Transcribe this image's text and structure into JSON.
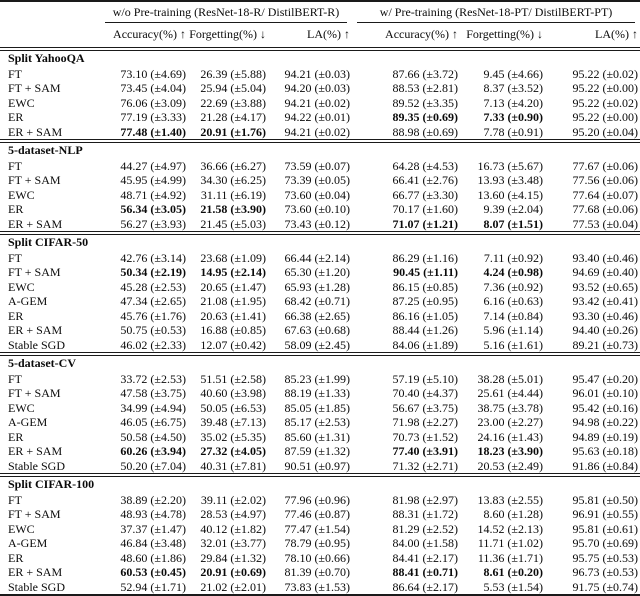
{
  "table": {
    "groups": [
      {
        "label": "w/o Pre-training (ResNet-18-R/ DistilBERT-R)"
      },
      {
        "label": "w/ Pre-training (ResNet-18-PT/ DistilBERT-PT)"
      }
    ],
    "columns": [
      "Accuracy(%) ↑",
      "Forgetting(%) ↓",
      "LA(%) ↑",
      "Accuracy(%) ↑",
      "Forgetting(%) ↓",
      "LA(%) ↑"
    ],
    "sections": [
      {
        "title": "Split YahooQA",
        "rows": [
          {
            "method": "FT",
            "values": [
              "73.10 (±4.69)",
              "26.39 (±5.88)",
              "94.21 (±0.03)",
              "87.66 (±3.72)",
              "9.45 (±4.66)",
              "95.22 (±0.02)"
            ],
            "bold": [
              0,
              0,
              0,
              0,
              0,
              0
            ]
          },
          {
            "method": "FT + SAM",
            "values": [
              "73.45 (±4.04)",
              "25.94 (±5.04)",
              "94.20 (±0.03)",
              "88.53 (±2.81)",
              "8.37 (±3.52)",
              "95.22 (±0.00)"
            ],
            "bold": [
              0,
              0,
              0,
              0,
              0,
              0
            ]
          },
          {
            "method": "EWC",
            "values": [
              "76.06 (±3.09)",
              "22.69 (±3.88)",
              "94.21 (±0.02)",
              "89.52 (±3.35)",
              "7.13 (±4.20)",
              "95.22 (±0.02)"
            ],
            "bold": [
              0,
              0,
              0,
              0,
              0,
              0
            ]
          },
          {
            "method": "ER",
            "values": [
              "77.19 (±3.33)",
              "21.28 (±4.17)",
              "94.22 (±0.01)",
              "89.35 (±0.69)",
              "7.33 (±0.90)",
              "95.22 (±0.00)"
            ],
            "bold": [
              0,
              0,
              0,
              1,
              1,
              0
            ]
          },
          {
            "method": "ER + SAM",
            "values": [
              "77.48 (±1.40)",
              "20.91 (±1.76)",
              "94.21 (±0.02)",
              "88.98 (±0.69)",
              "7.78 (±0.91)",
              "95.20 (±0.04)"
            ],
            "bold": [
              1,
              1,
              0,
              0,
              0,
              0
            ]
          }
        ]
      },
      {
        "title": "5-dataset-NLP",
        "rows": [
          {
            "method": "FT",
            "values": [
              "44.27 (±4.97)",
              "36.66 (±6.27)",
              "73.59 (±0.07)",
              "64.28 (±4.53)",
              "16.73 (±5.67)",
              "77.67 (±0.06)"
            ],
            "bold": [
              0,
              0,
              0,
              0,
              0,
              0
            ]
          },
          {
            "method": "FT + SAM",
            "values": [
              "45.95 (±4.99)",
              "34.30 (±6.25)",
              "73.39 (±0.05)",
              "66.41 (±2.76)",
              "13.93 (±3.48)",
              "77.56 (±0.06)"
            ],
            "bold": [
              0,
              0,
              0,
              0,
              0,
              0
            ]
          },
          {
            "method": "EWC",
            "values": [
              "48.71 (±4.92)",
              "31.11 (±6.19)",
              "73.60 (±0.04)",
              "66.77 (±3.30)",
              "13.60 (±4.15)",
              "77.64 (±0.07)"
            ],
            "bold": [
              0,
              0,
              0,
              0,
              0,
              0
            ]
          },
          {
            "method": "ER",
            "values": [
              "56.34 (±3.05)",
              "21.58 (±3.90)",
              "73.60 (±0.10)",
              "70.17 (±1.60)",
              "9.39 (±2.04)",
              "77.68 (±0.06)"
            ],
            "bold": [
              1,
              1,
              0,
              0,
              0,
              0
            ]
          },
          {
            "method": "ER + SAM",
            "values": [
              "56.27 (±3.93)",
              "21.45 (±5.03)",
              "73.43 (±0.12)",
              "71.07 (±1.21)",
              "8.07 (±1.51)",
              "77.53 (±0.04)"
            ],
            "bold": [
              0,
              0,
              0,
              1,
              1,
              0
            ]
          }
        ]
      },
      {
        "title": "Split CIFAR-50",
        "rows": [
          {
            "method": "FT",
            "values": [
              "42.76 (±3.14)",
              "23.68 (±1.09)",
              "66.44 (±2.14)",
              "86.29 (±1.16)",
              "7.11 (±0.92)",
              "93.40 (±0.46)"
            ],
            "bold": [
              0,
              0,
              0,
              0,
              0,
              0
            ]
          },
          {
            "method": "FT + SAM",
            "values": [
              "50.34 (±2.19)",
              "14.95 (±2.14)",
              "65.30 (±1.20)",
              "90.45 (±1.11)",
              "4.24 (±0.98)",
              "94.69 (±0.40)"
            ],
            "bold": [
              1,
              1,
              0,
              1,
              1,
              0
            ]
          },
          {
            "method": "EWC",
            "values": [
              "45.28 (±2.53)",
              "20.65 (±1.47)",
              "65.93 (±1.28)",
              "86.15 (±0.85)",
              "7.36 (±0.92)",
              "93.52 (±0.65)"
            ],
            "bold": [
              0,
              0,
              0,
              0,
              0,
              0
            ]
          },
          {
            "method": "A-GEM",
            "values": [
              "47.34 (±2.65)",
              "21.08 (±1.95)",
              "68.42 (±0.71)",
              "87.25 (±0.95)",
              "6.16 (±0.63)",
              "93.42 (±0.41)"
            ],
            "bold": [
              0,
              0,
              0,
              0,
              0,
              0
            ]
          },
          {
            "method": "ER",
            "values": [
              "45.76 (±1.76)",
              "20.63 (±1.41)",
              "66.38 (±2.65)",
              "86.16 (±1.05)",
              "7.14 (±0.84)",
              "93.30 (±0.46)"
            ],
            "bold": [
              0,
              0,
              0,
              0,
              0,
              0
            ]
          },
          {
            "method": "ER + SAM",
            "values": [
              "50.75 (±0.53)",
              "16.88 (±0.85)",
              "67.63 (±0.68)",
              "88.44 (±1.26)",
              "5.96 (±1.14)",
              "94.40 (±0.26)"
            ],
            "bold": [
              0,
              0,
              0,
              0,
              0,
              0
            ]
          },
          {
            "method": "Stable SGD",
            "values": [
              "46.02 (±2.33)",
              "12.07 (±0.42)",
              "58.09 (±2.45)",
              "84.06 (±1.89)",
              "5.16 (±1.61)",
              "89.21 (±0.73)"
            ],
            "bold": [
              0,
              0,
              0,
              0,
              0,
              0
            ]
          }
        ]
      },
      {
        "title": "5-dataset-CV",
        "rows": [
          {
            "method": "FT",
            "values": [
              "33.72 (±2.53)",
              "51.51 (±2.58)",
              "85.23 (±1.99)",
              "57.19 (±5.10)",
              "38.28 (±5.01)",
              "95.47 (±0.20)"
            ],
            "bold": [
              0,
              0,
              0,
              0,
              0,
              0
            ]
          },
          {
            "method": "FT + SAM",
            "values": [
              "47.58 (±3.75)",
              "40.60 (±3.98)",
              "88.19 (±1.33)",
              "70.40 (±4.37)",
              "25.61 (±4.44)",
              "96.01 (±0.10)"
            ],
            "bold": [
              0,
              0,
              0,
              0,
              0,
              0
            ]
          },
          {
            "method": "EWC",
            "values": [
              "34.99 (±4.94)",
              "50.05 (±6.53)",
              "85.05 (±1.85)",
              "56.67 (±3.75)",
              "38.75 (±3.78)",
              "95.42 (±0.16)"
            ],
            "bold": [
              0,
              0,
              0,
              0,
              0,
              0
            ]
          },
          {
            "method": "A-GEM",
            "values": [
              "46.05 (±6.75)",
              "39.48 (±7.13)",
              "85.17 (±2.53)",
              "71.98 (±2.27)",
              "23.00 (±2.27)",
              "94.98 (±0.22)"
            ],
            "bold": [
              0,
              0,
              0,
              0,
              0,
              0
            ]
          },
          {
            "method": "ER",
            "values": [
              "50.58 (±4.50)",
              "35.02 (±5.35)",
              "85.60 (±1.31)",
              "70.73 (±1.52)",
              "24.16 (±1.43)",
              "94.89 (±0.19)"
            ],
            "bold": [
              0,
              0,
              0,
              0,
              0,
              0
            ]
          },
          {
            "method": "ER + SAM",
            "values": [
              "60.26 (±3.94)",
              "27.32 (±4.05)",
              "87.59 (±1.32)",
              "77.40 (±3.91)",
              "18.23 (±3.90)",
              "95.63 (±0.18)"
            ],
            "bold": [
              1,
              1,
              0,
              1,
              1,
              0
            ]
          },
          {
            "method": "Stable SGD",
            "values": [
              "50.20 (±7.04)",
              "40.31 (±7.81)",
              "90.51 (±0.97)",
              "71.32 (±2.71)",
              "20.53 (±2.49)",
              "91.86 (±0.84)"
            ],
            "bold": [
              0,
              0,
              0,
              0,
              0,
              0
            ]
          }
        ]
      },
      {
        "title": "Split CIFAR-100",
        "rows": [
          {
            "method": "FT",
            "values": [
              "38.89 (±2.20)",
              "39.11 (±2.02)",
              "77.96 (±0.96)",
              "81.98 (±2.97)",
              "13.83 (±2.55)",
              "95.81 (±0.50)"
            ],
            "bold": [
              0,
              0,
              0,
              0,
              0,
              0
            ]
          },
          {
            "method": "FT + SAM",
            "values": [
              "48.93 (±4.78)",
              "28.53 (±4.97)",
              "77.46 (±0.87)",
              "88.31 (±1.72)",
              "8.60 (±1.28)",
              "96.91 (±0.55)"
            ],
            "bold": [
              0,
              0,
              0,
              0,
              0,
              0
            ]
          },
          {
            "method": "EWC",
            "values": [
              "37.37 (±1.47)",
              "40.12 (±1.82)",
              "77.47 (±1.54)",
              "81.29 (±2.52)",
              "14.52 (±2.13)",
              "95.81 (±0.61)"
            ],
            "bold": [
              0,
              0,
              0,
              0,
              0,
              0
            ]
          },
          {
            "method": "A-GEM",
            "values": [
              "46.84 (±3.48)",
              "32.01 (±3.77)",
              "78.79 (±0.95)",
              "84.00 (±1.58)",
              "11.71 (±1.02)",
              "95.70 (±0.69)"
            ],
            "bold": [
              0,
              0,
              0,
              0,
              0,
              0
            ]
          },
          {
            "method": "ER",
            "values": [
              "48.60 (±1.86)",
              "29.84 (±1.32)",
              "78.10 (±0.66)",
              "84.41 (±2.17)",
              "11.36 (±1.71)",
              "95.75 (±0.53)"
            ],
            "bold": [
              0,
              0,
              0,
              0,
              0,
              0
            ]
          },
          {
            "method": "ER + SAM",
            "values": [
              "60.53 (±0.45)",
              "20.91 (±0.69)",
              "81.39 (±0.70)",
              "88.41 (±0.71)",
              "8.61 (±0.20)",
              "96.73 (±0.53)"
            ],
            "bold": [
              1,
              1,
              0,
              1,
              1,
              0
            ]
          },
          {
            "method": "Stable SGD",
            "values": [
              "52.94 (±1.71)",
              "21.02 (±2.01)",
              "73.83 (±1.53)",
              "86.64 (±2.17)",
              "5.53 (±1.54)",
              "91.75 (±0.74)"
            ],
            "bold": [
              0,
              0,
              0,
              0,
              0,
              0
            ]
          }
        ]
      }
    ]
  }
}
